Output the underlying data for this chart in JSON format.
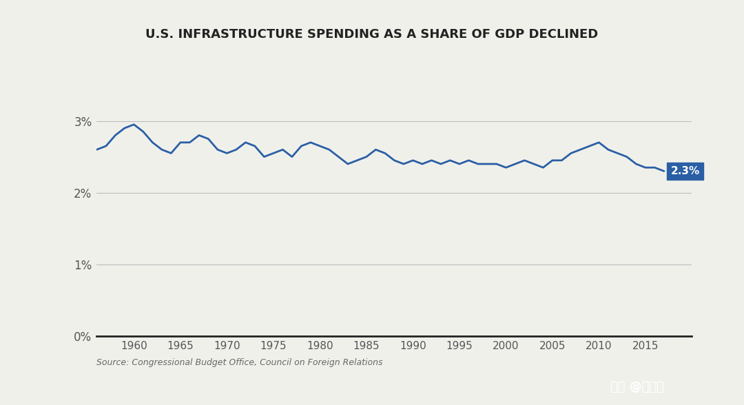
{
  "title": "U.S. INFRASTRUCTURE SPENDING AS A SHARE OF GDP DECLINED",
  "source": "Source: Congressional Budget Office, Council on Foreign Relations",
  "background_color": "#f0f0eb",
  "chart_bg": "#f0f0eb",
  "bottom_bar_color": "#1a1a1a",
  "line_color": "#2a5fa5",
  "line_width": 2.0,
  "xlim": [
    1956,
    2020
  ],
  "ylim": [
    0,
    0.035
  ],
  "yticks": [
    0,
    0.01,
    0.02,
    0.03
  ],
  "ytick_labels": [
    "0%",
    "1%",
    "2%",
    "3%"
  ],
  "xticks": [
    1960,
    1965,
    1970,
    1975,
    1980,
    1985,
    1990,
    1995,
    2000,
    2005,
    2010,
    2015
  ],
  "end_label": "2.3%",
  "end_label_bg": "#2a5fa5",
  "end_label_color": "#ffffff",
  "watermark": "头条 @王冰汝",
  "years": [
    1956,
    1957,
    1958,
    1959,
    1960,
    1961,
    1962,
    1963,
    1964,
    1965,
    1966,
    1967,
    1968,
    1969,
    1970,
    1971,
    1972,
    1973,
    1974,
    1975,
    1976,
    1977,
    1978,
    1979,
    1980,
    1981,
    1982,
    1983,
    1984,
    1985,
    1986,
    1987,
    1988,
    1989,
    1990,
    1991,
    1992,
    1993,
    1994,
    1995,
    1996,
    1997,
    1998,
    1999,
    2000,
    2001,
    2002,
    2003,
    2004,
    2005,
    2006,
    2007,
    2008,
    2009,
    2010,
    2011,
    2012,
    2013,
    2014,
    2015,
    2016,
    2017
  ],
  "values": [
    0.026,
    0.0265,
    0.028,
    0.029,
    0.0295,
    0.0285,
    0.027,
    0.026,
    0.0255,
    0.027,
    0.027,
    0.028,
    0.0275,
    0.026,
    0.0255,
    0.026,
    0.027,
    0.0265,
    0.025,
    0.0255,
    0.026,
    0.025,
    0.0265,
    0.027,
    0.0265,
    0.026,
    0.025,
    0.024,
    0.0245,
    0.025,
    0.026,
    0.0255,
    0.0245,
    0.024,
    0.0245,
    0.024,
    0.0245,
    0.024,
    0.0245,
    0.024,
    0.0245,
    0.024,
    0.024,
    0.024,
    0.0235,
    0.024,
    0.0245,
    0.024,
    0.0235,
    0.0245,
    0.0245,
    0.0255,
    0.026,
    0.0265,
    0.027,
    0.026,
    0.0255,
    0.025,
    0.024,
    0.0235,
    0.0235,
    0.023
  ]
}
